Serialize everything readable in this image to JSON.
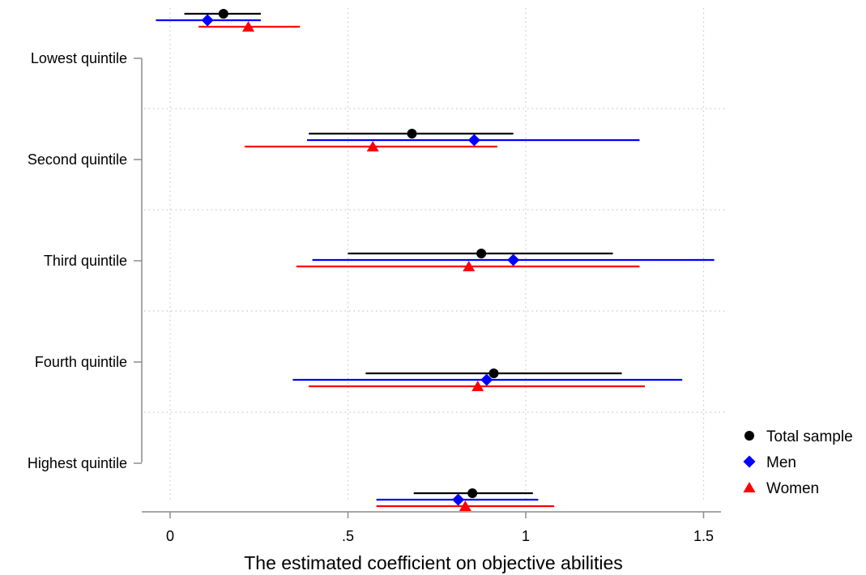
{
  "chart_data": {
    "type": "dot-whisker",
    "xlabel": "The estimated coefficient on objective abilities",
    "xlim": [
      -0.07,
      1.55
    ],
    "xticks": [
      {
        "value": 0,
        "label": "0"
      },
      {
        "value": 0.5,
        "label": ".5"
      },
      {
        "value": 1,
        "label": "1"
      },
      {
        "value": 1.5,
        "label": "1.5"
      }
    ],
    "categories": [
      "Lowest quintile",
      "Second quintile",
      "Third quintile",
      "Fourth quintile",
      "Highest quintile"
    ],
    "grid": true,
    "legend_position": "bottom-right",
    "series": [
      {
        "name": "Total sample",
        "color": "#000000",
        "marker": "circle",
        "points": [
          {
            "estimate": 0.15,
            "lower": 0.04,
            "upper": 0.255
          },
          {
            "estimate": 0.68,
            "lower": 0.39,
            "upper": 0.965
          },
          {
            "estimate": 0.875,
            "lower": 0.5,
            "upper": 1.245
          },
          {
            "estimate": 0.91,
            "lower": 0.55,
            "upper": 1.27
          },
          {
            "estimate": 0.85,
            "lower": 0.685,
            "upper": 1.02
          }
        ]
      },
      {
        "name": "Men",
        "color": "#0000ff",
        "marker": "diamond",
        "points": [
          {
            "estimate": 0.105,
            "lower": -0.04,
            "upper": 0.255
          },
          {
            "estimate": 0.855,
            "lower": 0.385,
            "upper": 1.32
          },
          {
            "estimate": 0.965,
            "lower": 0.4,
            "upper": 1.53
          },
          {
            "estimate": 0.89,
            "lower": 0.345,
            "upper": 1.44
          },
          {
            "estimate": 0.81,
            "lower": 0.58,
            "upper": 1.035
          }
        ]
      },
      {
        "name": "Women",
        "color": "#ff0000",
        "marker": "triangle",
        "points": [
          {
            "estimate": 0.22,
            "lower": 0.08,
            "upper": 0.365
          },
          {
            "estimate": 0.57,
            "lower": 0.21,
            "upper": 0.92
          },
          {
            "estimate": 0.84,
            "lower": 0.355,
            "upper": 1.32
          },
          {
            "estimate": 0.865,
            "lower": 0.39,
            "upper": 1.335
          },
          {
            "estimate": 0.83,
            "lower": 0.58,
            "upper": 1.08
          }
        ]
      }
    ]
  }
}
